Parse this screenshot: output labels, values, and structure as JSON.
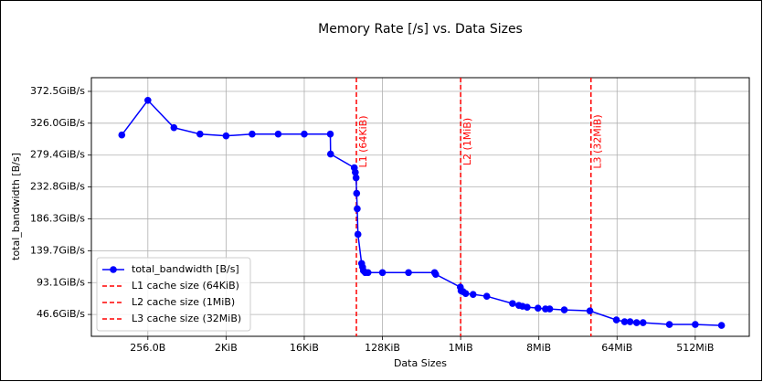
{
  "chart_data": {
    "type": "line",
    "title": "Memory Rate [/s] vs. Data Sizes",
    "xlabel": "Data Sizes",
    "ylabel": "total_bandwidth [B/s]",
    "xscale": "log",
    "grid": true,
    "legend_loc": "lower left",
    "xlim": [
      57,
      2260000000
    ],
    "ylim": [
      14.7,
      392.5
    ],
    "xticks": [
      {
        "value": 256,
        "label": "256.0B"
      },
      {
        "value": 2048,
        "label": "2KiB"
      },
      {
        "value": 16384,
        "label": "16KiB"
      },
      {
        "value": 131072,
        "label": "128KiB"
      },
      {
        "value": 1048576,
        "label": "1MiB"
      },
      {
        "value": 8388608,
        "label": "8MiB"
      },
      {
        "value": 67108864,
        "label": "64MiB"
      },
      {
        "value": 536870912,
        "label": "512MiB"
      }
    ],
    "yticks": [
      {
        "value": 46.6,
        "label": "46.6GiB/s"
      },
      {
        "value": 93.1,
        "label": "93.1GiB/s"
      },
      {
        "value": 139.7,
        "label": "139.7GiB/s"
      },
      {
        "value": 186.3,
        "label": "186.3GiB/s"
      },
      {
        "value": 232.8,
        "label": "232.8GiB/s"
      },
      {
        "value": 279.4,
        "label": "279.4GiB/s"
      },
      {
        "value": 326.0,
        "label": "326.0GiB/s"
      },
      {
        "value": 372.5,
        "label": "372.5GiB/s"
      }
    ],
    "series": [
      {
        "name": "total_bandwidth [B/s]",
        "color": "#0000ff",
        "x": [
          128,
          256,
          512,
          1024,
          2048,
          4096,
          8192,
          16384,
          32768,
          33000,
          62000,
          63700,
          65000,
          66000,
          67000,
          68300,
          75300,
          77300,
          79000,
          83000,
          89300,
          131072,
          262144,
          524288,
          540000,
          1040000,
          1060000,
          1120000,
          1200000,
          1460000,
          2100000,
          4170000,
          4930000,
          5430000,
          6150000,
          8200000,
          10000000,
          11200000,
          16500000,
          32600000,
          66000000,
          82000000,
          95000000,
          113000000,
          134000000,
          270000000,
          537000000,
          1080000000
        ],
        "values": [
          308.8,
          359.4,
          319.5,
          310.1,
          307.5,
          310.1,
          310.1,
          310.1,
          310.1,
          280.9,
          260.9,
          254.2,
          246.3,
          223.6,
          201.0,
          163.7,
          121.1,
          115.8,
          110.5,
          107.8,
          107.8,
          107.8,
          107.8,
          107.8,
          105.2,
          86.5,
          81.2,
          79.9,
          77.2,
          75.9,
          73.2,
          62.6,
          59.9,
          58.6,
          57.2,
          55.9,
          54.6,
          54.6,
          53.3,
          51.9,
          38.6,
          36.0,
          36.0,
          34.6,
          34.6,
          32.0,
          32.0,
          30.6
        ]
      }
    ],
    "vlines": [
      {
        "x": 65536,
        "name": "L1 cache size (64KiB)",
        "label": "L1 (64KiB)",
        "color": "#ff0000"
      },
      {
        "x": 1048576,
        "name": "L2 cache size (1MiB)",
        "label": "L2 (1MiB)",
        "color": "#ff0000"
      },
      {
        "x": 33554432,
        "name": "L3 cache size (32MiB)",
        "label": "L3 (32MiB)",
        "color": "#ff0000"
      }
    ]
  }
}
